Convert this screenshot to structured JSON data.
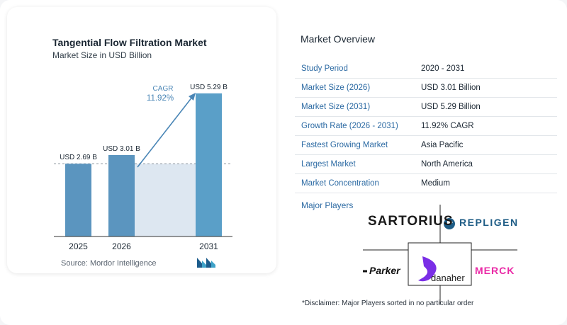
{
  "chart_data": {
    "type": "bar",
    "title": "Tangential Flow Filtration Market",
    "subtitle": "Market Size in USD Billion",
    "categories": [
      "2025",
      "2026",
      "2031"
    ],
    "values": [
      2.69,
      3.01,
      5.29
    ],
    "value_labels": [
      "USD 2.69 B",
      "USD 3.01 B",
      "USD 5.29 B"
    ],
    "ylim": [
      0,
      5.6
    ],
    "grid": false,
    "cagr_label": "CAGR",
    "cagr_value": "11.92%",
    "bar_color": "#5b95bf",
    "bar_color_last": "#5a9fc8"
  },
  "source": "Source:  Mordor Intelligence",
  "overview": {
    "title": "Market Overview",
    "rows": [
      {
        "key": "Study Period",
        "value": "2020 - 2031"
      },
      {
        "key": "Market Size (2026)",
        "value": "USD 3.01 Billion"
      },
      {
        "key": "Market Size (2031)",
        "value": "USD 5.29 Billion"
      },
      {
        "key": "Growth Rate (2026 - 2031)",
        "value": "11.92% CAGR"
      },
      {
        "key": "Fastest Growing Market",
        "value": "Asia Pacific"
      },
      {
        "key": "Largest Market",
        "value": "North America"
      },
      {
        "key": "Market Concentration",
        "value": "Medium"
      }
    ]
  },
  "players": {
    "title": "Major Players",
    "logos": [
      "SARTORIUS",
      "REPLIGEN",
      "Parker",
      "danaher",
      "MERCK"
    ]
  },
  "disclaimer": "*Disclaimer: Major Players sorted in no particular order"
}
